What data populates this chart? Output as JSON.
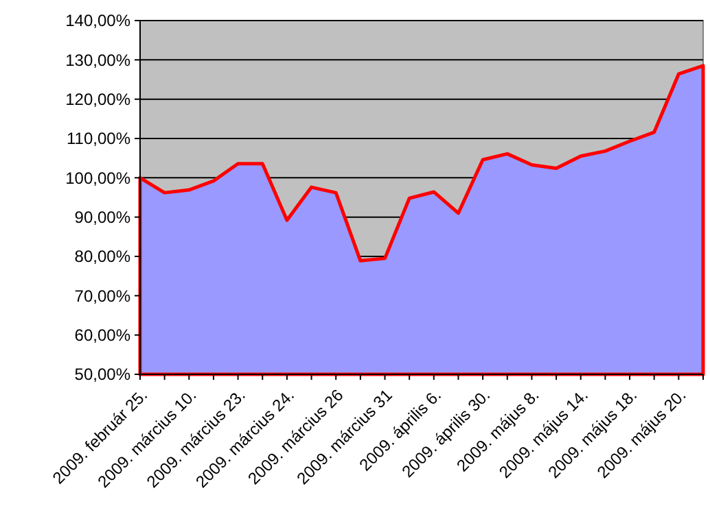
{
  "chart_data": {
    "type": "area",
    "categories": [
      "2009. február 25.",
      null,
      "2009. március 10.",
      null,
      "2009. március 23.",
      null,
      "2009. március 24.",
      null,
      "2009. március 26",
      null,
      "2009. március 31",
      null,
      "2009. április 6.",
      null,
      "2009. április 30.",
      null,
      "2009. május 8.",
      null,
      "2009. május 14.",
      null,
      "2009. május 18.",
      null,
      "2009. május 20.",
      null
    ],
    "series": [
      {
        "color": "#9999ff",
        "values": [
          100,
          96.2,
          96.9,
          99.2,
          103.6,
          103.6,
          89.2,
          97.6,
          96.2,
          78.9,
          79.5,
          94.8,
          96.4,
          91.0,
          104.6,
          106.1,
          103.3,
          102.4,
          105.5,
          106.8,
          109.3,
          111.6,
          126.4,
          128.5
        ]
      }
    ],
    "ylim": [
      50,
      140
    ],
    "yticks": [
      {
        "value": 50,
        "label": "50,00%"
      },
      {
        "value": 60,
        "label": "60,00%"
      },
      {
        "value": 70,
        "label": "70,00%"
      },
      {
        "value": 80,
        "label": "80,00%"
      },
      {
        "value": 90,
        "label": "90,00%"
      },
      {
        "value": 100,
        "label": "100,00%"
      },
      {
        "value": 110,
        "label": "110,00%"
      },
      {
        "value": 120,
        "label": "120,00%"
      },
      {
        "value": 130,
        "label": "130,00%"
      },
      {
        "value": 140,
        "label": "140,00%"
      }
    ],
    "grid": "y"
  }
}
